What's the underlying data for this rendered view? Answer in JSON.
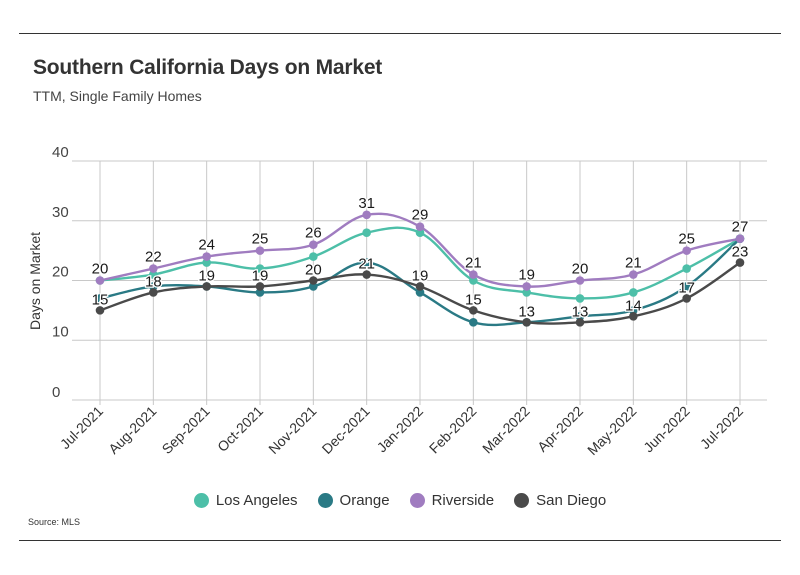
{
  "header": {
    "title": "Southern California Days on Market",
    "subtitle": "TTM, Single Family Homes"
  },
  "footer": {
    "source": "Source:  MLS"
  },
  "chart_data": {
    "type": "line",
    "title": "Southern California Days on Market",
    "subtitle": "TTM, Single Family Homes",
    "xlabel": "",
    "ylabel": "Days on Market",
    "ylim": [
      0,
      40
    ],
    "yticks": [
      0,
      10,
      20,
      30,
      40
    ],
    "grid": true,
    "legend_position": "bottom",
    "categories": [
      "Jul-2021",
      "Aug-2021",
      "Sep-2021",
      "Oct-2021",
      "Nov-2021",
      "Dec-2021",
      "Jan-2022",
      "Feb-2022",
      "Mar-2022",
      "Apr-2022",
      "May-2022",
      "Jun-2022",
      "Jul-2022"
    ],
    "series": [
      {
        "name": "Los Angeles",
        "color": "#4dbfa8",
        "values": [
          20,
          21,
          23,
          22,
          24,
          28,
          28,
          20,
          18,
          17,
          18,
          22,
          27
        ],
        "labeled": false
      },
      {
        "name": "Orange",
        "color": "#2a7a85",
        "values": [
          17,
          19,
          19,
          18,
          19,
          23,
          18,
          13,
          13,
          14,
          15,
          19,
          27
        ],
        "labeled": false
      },
      {
        "name": "Riverside",
        "color": "#a07cc0",
        "values": [
          20,
          22,
          24,
          25,
          26,
          31,
          29,
          21,
          19,
          20,
          21,
          25,
          27
        ],
        "labeled": true
      },
      {
        "name": "San Diego",
        "color": "#4a4a4a",
        "values": [
          15,
          18,
          19,
          19,
          20,
          21,
          19,
          15,
          13,
          13,
          14,
          17,
          23
        ],
        "labeled": true
      }
    ]
  }
}
